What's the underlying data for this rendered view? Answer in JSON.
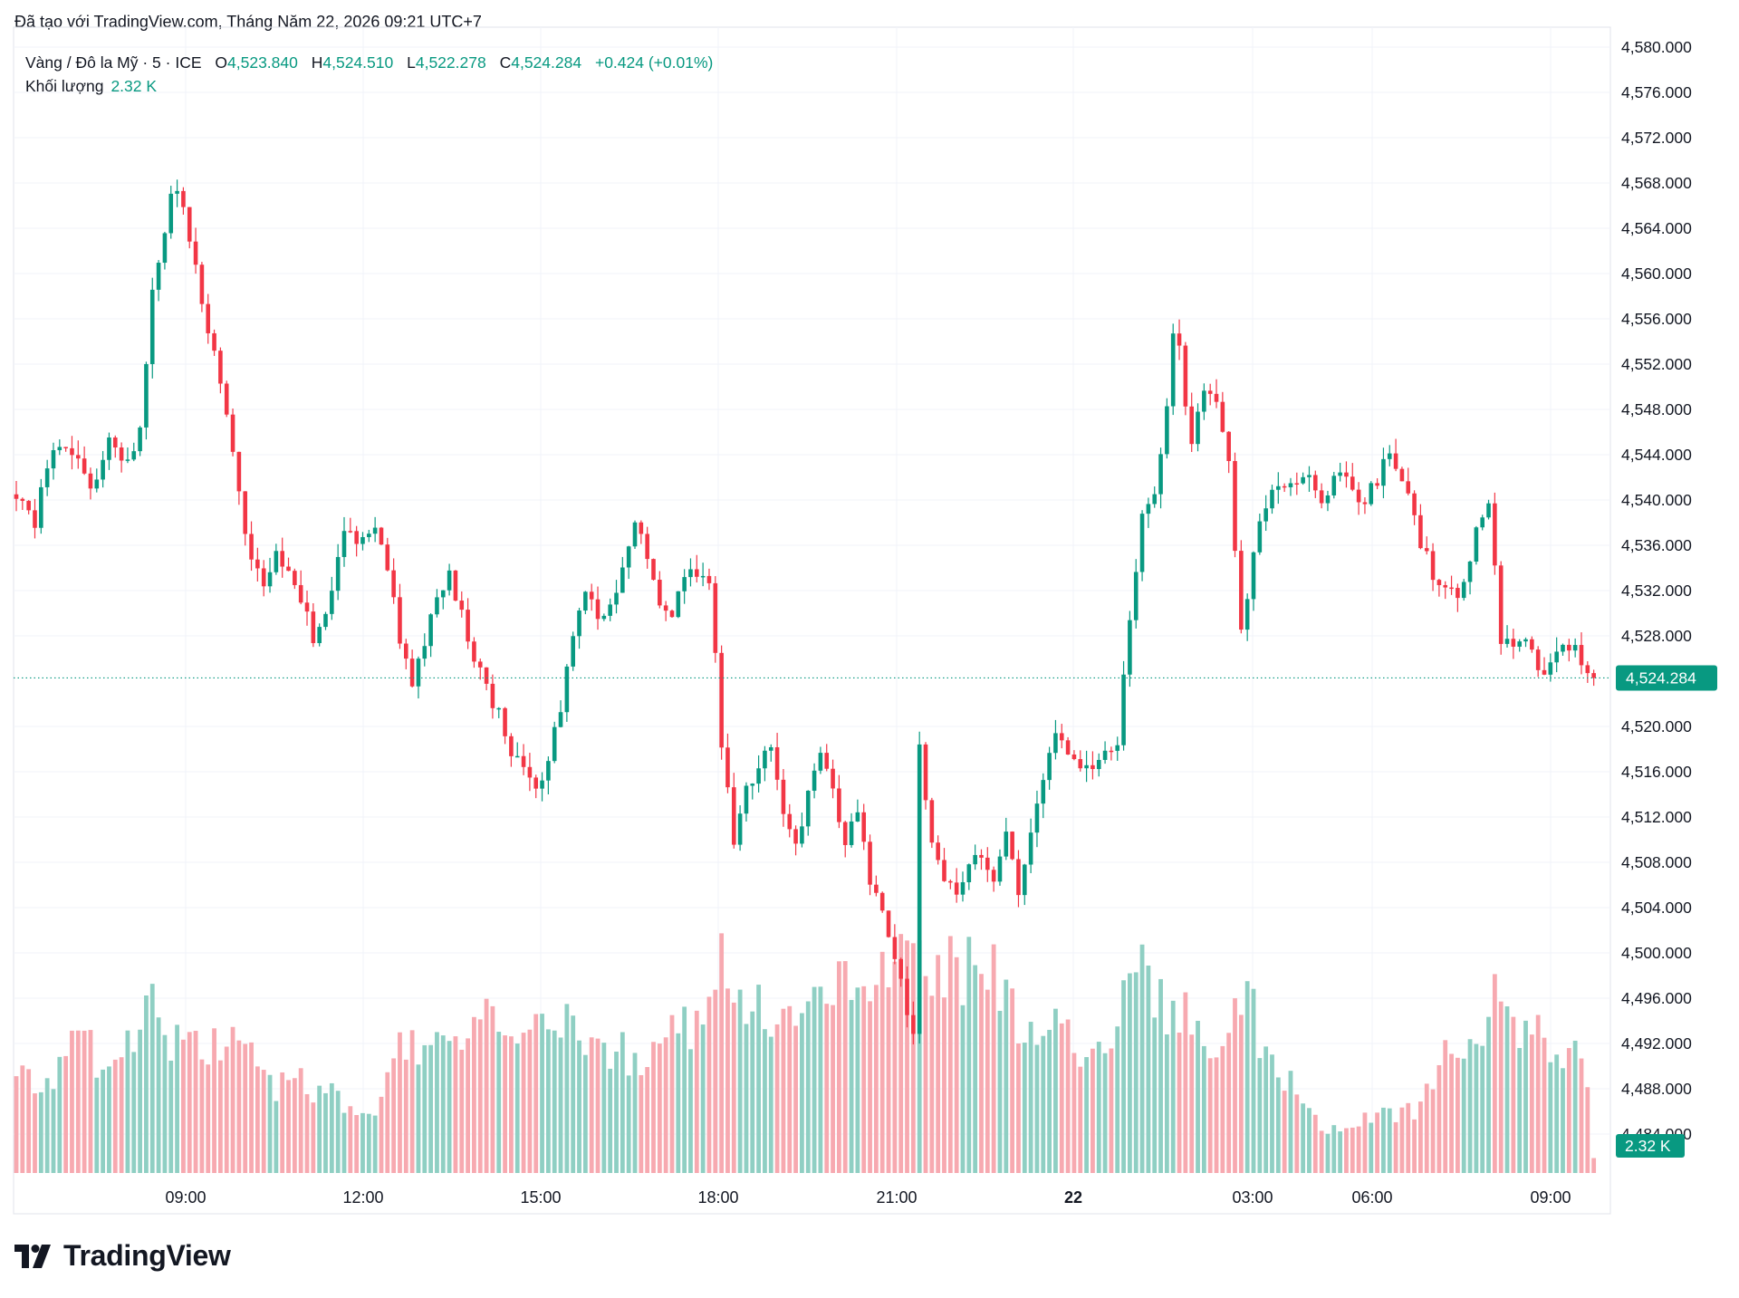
{
  "watermark_text": "Đã tạo với TradingView.com, Tháng Năm 22, 2026 09:21 UTC+7",
  "legend": {
    "symbol": "Vàng / Đô la Mỹ · 5 · ICE",
    "open_label": "O",
    "open": "4,523.840",
    "high_label": "H",
    "high": "4,524.510",
    "low_label": "L",
    "low": "4,522.278",
    "close_label": "C",
    "close": "4,524.284",
    "change": "+0.424 (+0.01%)",
    "volume_label": "Khối lượng",
    "volume": "2.32 K"
  },
  "brand": {
    "name": "TradingView",
    "logo": "tradingview-logo-icon"
  },
  "colors": {
    "up": "#089981",
    "down": "#F23645",
    "up_volume": "#8FCFC3",
    "down_volume": "#F7A9B0",
    "grid": "#F0F3FA",
    "axis_text": "#131722"
  },
  "chart_data": {
    "type": "candlestick",
    "symbol": "Vàng / Đô la Mỹ",
    "interval": "5",
    "exchange": "ICE",
    "y_axis": {
      "ticks": [
        "4,580.000",
        "4,576.000",
        "4,572.000",
        "4,568.000",
        "4,564.000",
        "4,560.000",
        "4,556.000",
        "4,552.000",
        "4,548.000",
        "4,544.000",
        "4,540.000",
        "4,536.000",
        "4,532.000",
        "4,528.000",
        "4,520.000",
        "4,516.000",
        "4,512.000",
        "4,508.000",
        "4,504.000",
        "4,500.000",
        "4,496.000",
        "4,492.000",
        "4,488.000",
        "4,484.000"
      ],
      "ylim": [
        4481.5,
        4581.5
      ],
      "last_price_label": "4,524.284",
      "last_price": 4524.284,
      "volume_label": "2.32 K"
    },
    "x_axis": {
      "ticks": [
        "09:00",
        "12:00",
        "15:00",
        "18:00",
        "21:00",
        "22",
        "03:00",
        "06:00",
        "09:00"
      ],
      "bold_tick": "22"
    },
    "grid": true,
    "price_path": [
      [
        0,
        4540.5
      ],
      [
        3,
        4538
      ],
      [
        6,
        4545
      ],
      [
        10,
        4543
      ],
      [
        12,
        4541
      ],
      [
        15,
        4545
      ],
      [
        18,
        4543
      ],
      [
        20,
        4546
      ],
      [
        22,
        4558
      ],
      [
        25,
        4567
      ],
      [
        27,
        4566
      ],
      [
        29,
        4560
      ],
      [
        31,
        4555
      ],
      [
        34,
        4548
      ],
      [
        36,
        4540
      ],
      [
        38,
        4535
      ],
      [
        40,
        4532
      ],
      [
        42,
        4535
      ],
      [
        44,
        4533
      ],
      [
        46,
        4531
      ],
      [
        48,
        4528
      ],
      [
        50,
        4530
      ],
      [
        53,
        4537
      ],
      [
        56,
        4536
      ],
      [
        58,
        4538
      ],
      [
        60,
        4534
      ],
      [
        62,
        4528
      ],
      [
        64,
        4524
      ],
      [
        66,
        4527
      ],
      [
        68,
        4532
      ],
      [
        70,
        4533
      ],
      [
        72,
        4530
      ],
      [
        74,
        4526
      ],
      [
        76,
        4523
      ],
      [
        78,
        4521
      ],
      [
        80,
        4518
      ],
      [
        82,
        4516
      ],
      [
        84,
        4514
      ],
      [
        86,
        4517
      ],
      [
        88,
        4522
      ],
      [
        90,
        4528
      ],
      [
        92,
        4532
      ],
      [
        94,
        4529
      ],
      [
        96,
        4530
      ],
      [
        98,
        4534
      ],
      [
        100,
        4538
      ],
      [
        102,
        4535
      ],
      [
        104,
        4531
      ],
      [
        106,
        4530
      ],
      [
        108,
        4533
      ],
      [
        110,
        4534
      ],
      [
        112,
        4533
      ],
      [
        113,
        4527
      ],
      [
        114,
        4518
      ],
      [
        116,
        4510
      ],
      [
        118,
        4514
      ],
      [
        120,
        4517
      ],
      [
        122,
        4518
      ],
      [
        124,
        4512
      ],
      [
        126,
        4509
      ],
      [
        128,
        4514
      ],
      [
        130,
        4517
      ],
      [
        132,
        4515
      ],
      [
        134,
        4509
      ],
      [
        136,
        4513
      ],
      [
        138,
        4506
      ],
      [
        140,
        4503
      ],
      [
        142,
        4500
      ],
      [
        144,
        4495
      ],
      [
        145,
        4493
      ],
      [
        146,
        4518
      ],
      [
        148,
        4509
      ],
      [
        150,
        4506
      ],
      [
        152,
        4505
      ],
      [
        154,
        4508
      ],
      [
        156,
        4509
      ],
      [
        158,
        4506
      ],
      [
        160,
        4510
      ],
      [
        162,
        4505
      ],
      [
        164,
        4511
      ],
      [
        166,
        4515
      ],
      [
        168,
        4519
      ],
      [
        170,
        4517
      ],
      [
        172,
        4517
      ],
      [
        174,
        4516
      ],
      [
        176,
        4518
      ],
      [
        178,
        4519
      ],
      [
        180,
        4530
      ],
      [
        182,
        4538
      ],
      [
        184,
        4541
      ],
      [
        186,
        4548
      ],
      [
        187,
        4555
      ],
      [
        188,
        4553
      ],
      [
        190,
        4545
      ],
      [
        192,
        4550
      ],
      [
        194,
        4549
      ],
      [
        196,
        4543
      ],
      [
        198,
        4529
      ],
      [
        200,
        4535
      ],
      [
        202,
        4540
      ],
      [
        204,
        4542
      ],
      [
        206,
        4541
      ],
      [
        208,
        4542
      ],
      [
        210,
        4541
      ],
      [
        212,
        4540
      ],
      [
        214,
        4543
      ],
      [
        216,
        4541
      ],
      [
        218,
        4540
      ],
      [
        220,
        4542
      ],
      [
        222,
        4544
      ],
      [
        224,
        4542
      ],
      [
        226,
        4538
      ],
      [
        228,
        4535
      ],
      [
        230,
        4532
      ],
      [
        232,
        4532
      ],
      [
        234,
        4532
      ],
      [
        236,
        4537
      ],
      [
        238,
        4539
      ],
      [
        240,
        4528
      ],
      [
        242,
        4527
      ],
      [
        244,
        4527
      ],
      [
        246,
        4525
      ],
      [
        248,
        4525
      ],
      [
        250,
        4528
      ],
      [
        252,
        4527
      ],
      [
        254,
        4525
      ],
      [
        255,
        4524.3
      ]
    ],
    "volume_path": [
      [
        0,
        1.9
      ],
      [
        4,
        1.9
      ],
      [
        8,
        2.0
      ],
      [
        10,
        3.1
      ],
      [
        12,
        2.5
      ],
      [
        14,
        2.0
      ],
      [
        17,
        2.6
      ],
      [
        20,
        3.0
      ],
      [
        22,
        3.3
      ],
      [
        25,
        2.5
      ],
      [
        28,
        2.9
      ],
      [
        30,
        2.3
      ],
      [
        32,
        2.5
      ],
      [
        34,
        2.8
      ],
      [
        36,
        2.5
      ],
      [
        38,
        2.3
      ],
      [
        40,
        1.8
      ],
      [
        42,
        1.6
      ],
      [
        44,
        1.9
      ],
      [
        46,
        1.8
      ],
      [
        48,
        1.5
      ],
      [
        50,
        1.6
      ],
      [
        52,
        1.5
      ],
      [
        55,
        1.1
      ],
      [
        58,
        1.0
      ],
      [
        60,
        2.1
      ],
      [
        62,
        2.9
      ],
      [
        64,
        2.6
      ],
      [
        66,
        2.5
      ],
      [
        68,
        2.6
      ],
      [
        70,
        2.7
      ],
      [
        72,
        2.8
      ],
      [
        74,
        2.9
      ],
      [
        76,
        3.0
      ],
      [
        78,
        2.9
      ],
      [
        80,
        2.5
      ],
      [
        82,
        2.5
      ],
      [
        84,
        2.8
      ],
      [
        86,
        3.2
      ],
      [
        88,
        3.3
      ],
      [
        90,
        3.0
      ],
      [
        92,
        2.8
      ],
      [
        94,
        2.4
      ],
      [
        96,
        2.5
      ],
      [
        98,
        2.4
      ],
      [
        100,
        2.2
      ],
      [
        102,
        2.1
      ],
      [
        104,
        2.4
      ],
      [
        106,
        2.7
      ],
      [
        108,
        2.9
      ],
      [
        110,
        3.0
      ],
      [
        112,
        3.4
      ],
      [
        113,
        4.4
      ],
      [
        115,
        4.0
      ],
      [
        117,
        3.7
      ],
      [
        119,
        3.3
      ],
      [
        121,
        3.2
      ],
      [
        123,
        2.8
      ],
      [
        125,
        2.9
      ],
      [
        127,
        3.1
      ],
      [
        129,
        3.3
      ],
      [
        131,
        3.6
      ],
      [
        133,
        3.9
      ],
      [
        135,
        3.6
      ],
      [
        137,
        3.7
      ],
      [
        139,
        3.9
      ],
      [
        141,
        4.1
      ],
      [
        143,
        4.1
      ],
      [
        145,
        4.2
      ],
      [
        147,
        4.0
      ],
      [
        149,
        4.1
      ],
      [
        151,
        4.2
      ],
      [
        153,
        4.0
      ],
      [
        155,
        4.1
      ],
      [
        157,
        4.0
      ],
      [
        159,
        3.8
      ],
      [
        161,
        3.3
      ],
      [
        163,
        3.0
      ],
      [
        165,
        2.9
      ],
      [
        167,
        3.3
      ],
      [
        169,
        3.0
      ],
      [
        171,
        2.7
      ],
      [
        173,
        2.3
      ],
      [
        175,
        2.3
      ],
      [
        177,
        2.6
      ],
      [
        179,
        4.5
      ],
      [
        181,
        4.2
      ],
      [
        183,
        3.8
      ],
      [
        185,
        3.5
      ],
      [
        187,
        3.2
      ],
      [
        189,
        3.3
      ],
      [
        191,
        3.0
      ],
      [
        193,
        2.8
      ],
      [
        195,
        2.7
      ],
      [
        197,
        3.3
      ],
      [
        199,
        3.8
      ],
      [
        201,
        2.6
      ],
      [
        203,
        2.2
      ],
      [
        205,
        2.0
      ],
      [
        207,
        1.6
      ],
      [
        209,
        1.3
      ],
      [
        211,
        1.0
      ],
      [
        213,
        0.9
      ],
      [
        215,
        0.9
      ],
      [
        217,
        1.1
      ],
      [
        219,
        1.2
      ],
      [
        221,
        1.3
      ],
      [
        223,
        1.1
      ],
      [
        225,
        1.2
      ],
      [
        227,
        1.3
      ],
      [
        229,
        1.8
      ],
      [
        231,
        2.3
      ],
      [
        233,
        2.6
      ],
      [
        235,
        2.4
      ],
      [
        237,
        2.3
      ],
      [
        239,
        3.4
      ],
      [
        241,
        3.1
      ],
      [
        243,
        2.8
      ],
      [
        245,
        2.6
      ],
      [
        247,
        2.8
      ],
      [
        249,
        2.4
      ],
      [
        251,
        2.6
      ],
      [
        253,
        2.2
      ],
      [
        254,
        1.8
      ],
      [
        255,
        0.3
      ]
    ]
  }
}
